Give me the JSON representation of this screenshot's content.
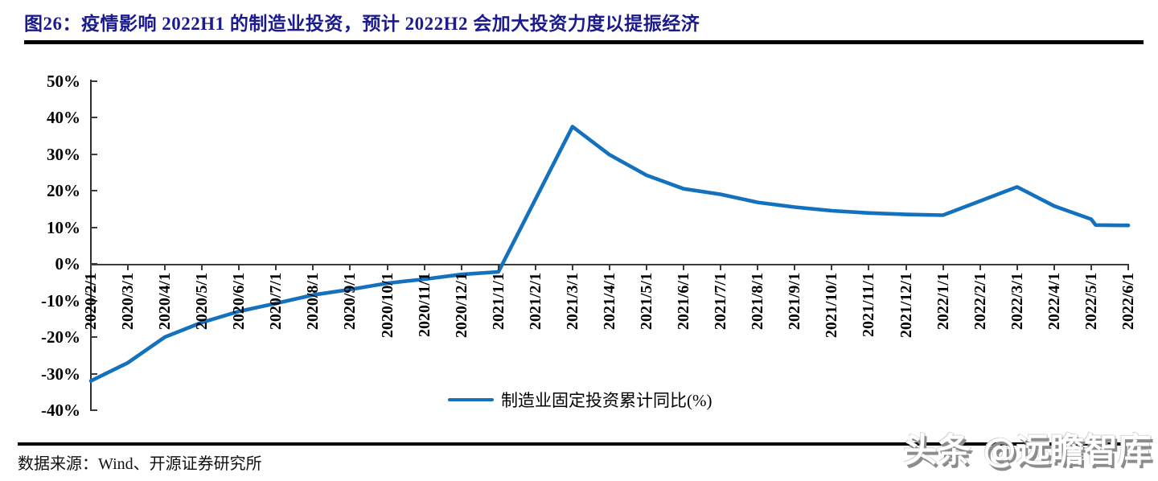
{
  "title": "图26：疫情影响 2022H1 的制造业投资，预计 2022H2 会加大投资力度以提振经济",
  "legend": {
    "label": "制造业固定投资累计同比(%)"
  },
  "footer": {
    "source": "数据来源：Wind、开源证券研究所"
  },
  "watermark": {
    "text": "头条 @远瞻智库"
  },
  "colors": {
    "title_text": "#1b1b8e",
    "line": "#1371bd",
    "axis": "#3a3a3a",
    "watermark_shadow": "#8c8c8c"
  },
  "chart_data": {
    "type": "line",
    "grid": false,
    "legend_position": "bottom-center",
    "y_axis": {
      "min": -40,
      "max": 50,
      "step": 10,
      "unit": "%",
      "tick_labels": [
        "50%",
        "40%",
        "30%",
        "20%",
        "10%",
        "0%",
        "-10%",
        "-20%",
        "-30%",
        "-40%"
      ]
    },
    "categories": [
      "2020/2/1",
      "2020/3/1",
      "2020/4/1",
      "2020/5/1",
      "2020/6/1",
      "2020/7/1",
      "2020/8/1",
      "2020/9/1",
      "2020/10/1",
      "2020/11/1",
      "2020/12/1",
      "2021/1/1",
      "2021/2/1",
      "2021/3/1",
      "2021/4/1",
      "2021/5/1",
      "2021/6/1",
      "2021/7/1",
      "2021/8/1",
      "2021/9/1",
      "2021/10/1",
      "2021/11/1",
      "2021/12/1",
      "2022/1/1",
      "2022/2/1",
      "2022/3/1",
      "2022/4/1",
      "2022/5/1",
      "2022/6/1"
    ],
    "missing_months": [
      "2021/2/1",
      "2022/2/1"
    ],
    "series": [
      {
        "name": "制造业固定投资累计同比(%)",
        "points": [
          {
            "date": "2020/2/1",
            "i": 0,
            "v": -32.0
          },
          {
            "date": "2020/3/1",
            "i": 1,
            "v": -27.0
          },
          {
            "date": "2020/4/1",
            "i": 2,
            "v": -20.0
          },
          {
            "date": "2020/5/1",
            "i": 3,
            "v": -16.0
          },
          {
            "date": "2020/6/1",
            "i": 4,
            "v": -13.0
          },
          {
            "date": "2020/7/1",
            "i": 5,
            "v": -10.8
          },
          {
            "date": "2020/8/1",
            "i": 6,
            "v": -8.5
          },
          {
            "date": "2020/9/1",
            "i": 7,
            "v": -7.0
          },
          {
            "date": "2020/10/1",
            "i": 8,
            "v": -5.3
          },
          {
            "date": "2020/11/1",
            "i": 9,
            "v": -4.2
          },
          {
            "date": "2020/12/1",
            "i": 10,
            "v": -2.9
          },
          {
            "date": "2021/1/1",
            "i": 11,
            "v": -2.2
          },
          {
            "date": "2021/3/1",
            "i": 13,
            "v": 37.5
          },
          {
            "date": "2021/4/1",
            "i": 14,
            "v": 29.8
          },
          {
            "date": "2021/5/1",
            "i": 15,
            "v": 24.2
          },
          {
            "date": "2021/6/1",
            "i": 16,
            "v": 20.5
          },
          {
            "date": "2021/7/1",
            "i": 17,
            "v": 19.0
          },
          {
            "date": "2021/8/1",
            "i": 18,
            "v": 16.8
          },
          {
            "date": "2021/9/1",
            "i": 19,
            "v": 15.5
          },
          {
            "date": "2021/10/1",
            "i": 20,
            "v": 14.5
          },
          {
            "date": "2021/11/1",
            "i": 21,
            "v": 13.9
          },
          {
            "date": "2021/12/1",
            "i": 22,
            "v": 13.5
          },
          {
            "date": "2022/1/1",
            "i": 23,
            "v": 13.3
          },
          {
            "date": "2022/3/1",
            "i": 25,
            "v": 21.0
          },
          {
            "date": "2022/4/1",
            "i": 26,
            "v": 15.8
          },
          {
            "date": "2022/5/1",
            "i": 27,
            "v": 12.2
          },
          {
            "date": "2022/5/4",
            "i": 27.12,
            "v": 10.6
          },
          {
            "date": "2022/6/1",
            "i": 28,
            "v": 10.5
          }
        ]
      }
    ]
  }
}
